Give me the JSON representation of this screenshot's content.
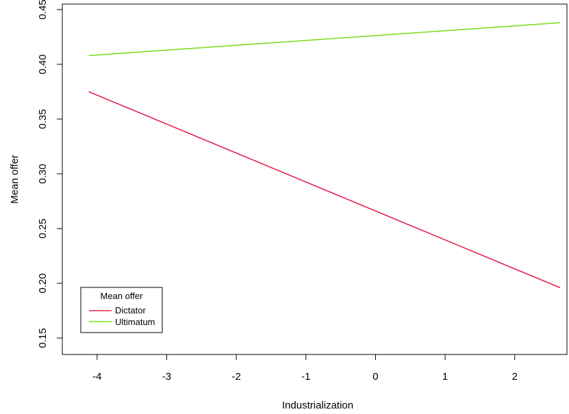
{
  "chart_data": {
    "type": "line",
    "title": "",
    "xlabel": "Industrialization",
    "ylabel": "Mean offer",
    "xlim": [
      -4.5,
      2.75
    ],
    "ylim": [
      0.135,
      0.455
    ],
    "xticks": [
      "-4",
      "-3",
      "-2",
      "-1",
      "0",
      "1",
      "2"
    ],
    "xtick_values": [
      -4,
      -3,
      -2,
      -1,
      0,
      1,
      2
    ],
    "yticks": [
      "0.15",
      "0.20",
      "0.25",
      "0.30",
      "0.35",
      "0.40",
      "0.45"
    ],
    "ytick_values": [
      0.15,
      0.2,
      0.25,
      0.3,
      0.35,
      0.4,
      0.45
    ],
    "grid": false,
    "legend": {
      "title": "Mean offer",
      "placement": "bottom-left",
      "entries": [
        "Dictator",
        "Ultimatum"
      ]
    },
    "series": [
      {
        "name": "Dictator",
        "color": "#e8204f",
        "x": [
          -4.12,
          2.65
        ],
        "y": [
          0.375,
          0.196
        ]
      },
      {
        "name": "Ultimatum",
        "color": "#7fdc1e",
        "x": [
          -4.12,
          2.65
        ],
        "y": [
          0.408,
          0.438
        ]
      }
    ]
  }
}
